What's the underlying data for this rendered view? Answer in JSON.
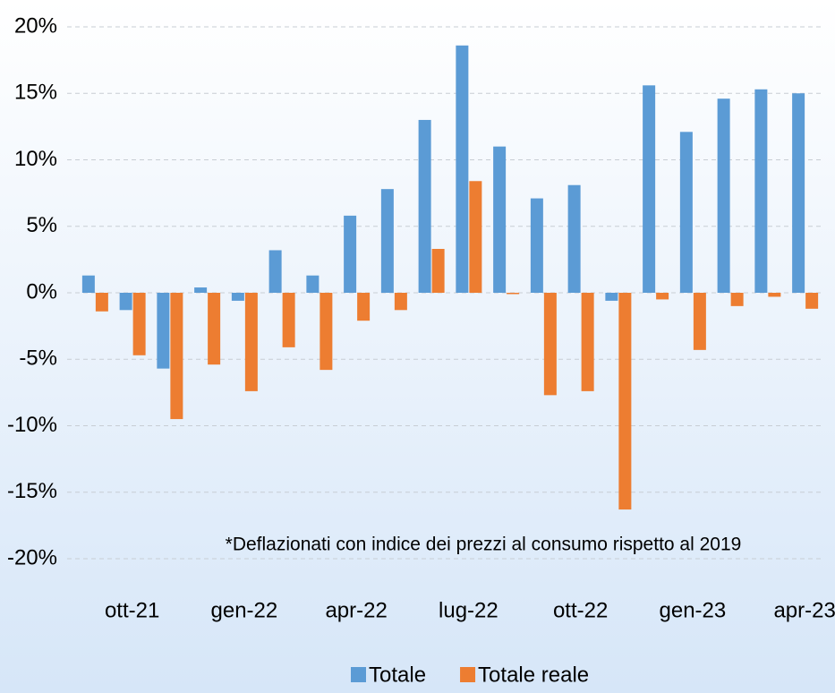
{
  "chart_data": {
    "type": "bar",
    "categories": [
      null,
      "ott-21",
      null,
      null,
      "gen-22",
      null,
      null,
      "apr-22",
      null,
      null,
      "lug-22",
      null,
      null,
      "ott-22",
      null,
      null,
      "gen-23",
      null,
      null,
      "apr-23"
    ],
    "series": [
      {
        "name": "Totale",
        "color": "#5b9bd5",
        "values": [
          1.3,
          -1.3,
          -5.7,
          0.4,
          -0.6,
          3.2,
          1.3,
          5.8,
          7.8,
          13.0,
          18.6,
          11.0,
          7.1,
          8.1,
          -0.6,
          15.6,
          12.1,
          14.6,
          15.3,
          15.0
        ]
      },
      {
        "name": "Totale reale",
        "color": "#ed7d31",
        "values": [
          -1.4,
          -4.7,
          -9.5,
          -5.4,
          -7.4,
          -4.1,
          -5.8,
          -2.1,
          -1.3,
          3.3,
          8.4,
          -0.1,
          -7.7,
          -7.4,
          -16.3,
          -0.5,
          -4.3,
          -1.0,
          -0.3,
          -1.2
        ]
      }
    ],
    "ylim": [
      -20,
      20
    ],
    "yticks": [
      {
        "value": -20,
        "label": "-20%"
      },
      {
        "value": -15,
        "label": "-15%"
      },
      {
        "value": -10,
        "label": "-10%"
      },
      {
        "value": -5,
        "label": "-5%"
      },
      {
        "value": 0,
        "label": "0%"
      },
      {
        "value": 5,
        "label": "5%"
      },
      {
        "value": 10,
        "label": "10%"
      },
      {
        "value": 15,
        "label": "15%"
      },
      {
        "value": 20,
        "label": "20%"
      }
    ],
    "grid": true,
    "annotation": "*Deflazionati con indice dei prezzi al consumo rispetto al 2019",
    "legend": "bottom"
  }
}
